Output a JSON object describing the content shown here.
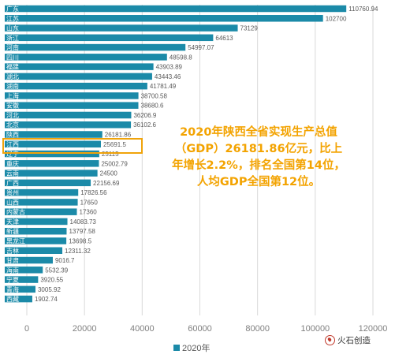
{
  "chart_data": {
    "type": "bar",
    "orientation": "horizontal",
    "series": [
      {
        "name": "2020年",
        "color": "#1b8aa8"
      }
    ],
    "categories": [
      "广东",
      "江苏",
      "山东",
      "浙江",
      "河南",
      "四川",
      "福建",
      "湖北",
      "湖南",
      "上海",
      "安徽",
      "河北",
      "北京",
      "陕西",
      "江西",
      "辽宁",
      "重庆",
      "云南",
      "广西",
      "贵州",
      "山西",
      "内蒙古",
      "天津",
      "新疆",
      "黑龙江",
      "吉林",
      "甘肃",
      "海南",
      "宁夏",
      "青海",
      "西藏"
    ],
    "values": [
      110760.94,
      102700,
      73129,
      64613,
      54997.07,
      48598.8,
      43903.89,
      43443.46,
      41781.49,
      38700.58,
      38680.6,
      36206.9,
      36102.6,
      26181.86,
      25691.5,
      25115,
      25002.79,
      24500,
      22156.69,
      17826.56,
      17650,
      17360,
      14083.73,
      13797.58,
      13698.5,
      12311.32,
      9016.7,
      5532.39,
      3920.55,
      3005.92,
      1902.74
    ],
    "value_labels": [
      "110760.94",
      "102700",
      "73129",
      "64613",
      "54997.07",
      "48598.8",
      "43903.89",
      "43443.46",
      "41781.49",
      "38700.58",
      "38680.6",
      "36206.9",
      "36102.6",
      "26181.86",
      "25691.5",
      "25115",
      "25002.79",
      "24500",
      "22156.69",
      "17826.56",
      "17650",
      "17360",
      "14083.73",
      "13797.58",
      "13698.5",
      "12311.32",
      "9016.7",
      "5532.39",
      "3920.55",
      "3005.92",
      "1902.74"
    ],
    "xlim": [
      0,
      120000
    ],
    "xticks": [
      "0",
      "20000",
      "40000",
      "60000",
      "80000",
      "100000",
      "120000"
    ],
    "legend_position": "bottom",
    "grid": true,
    "highlighted_category": "陕西"
  },
  "annotation": {
    "lines": [
      "2020年陕西全省实现生产总值",
      "（GDP）26181.86亿元，比上",
      "年增长2.2%，排名全国第14位，",
      "人均GDP全国第12位。"
    ],
    "color": "#f3a300"
  },
  "legend": {
    "label": "2020年"
  },
  "watermark": {
    "text": "火石创造",
    "icon": "fire-logo-icon"
  }
}
